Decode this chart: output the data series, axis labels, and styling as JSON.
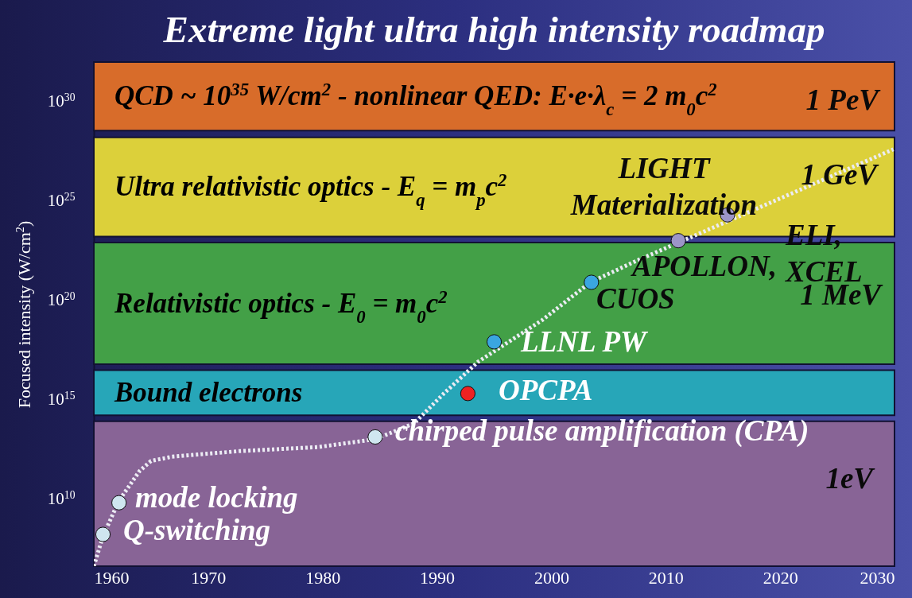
{
  "chart_data": {
    "type": "scatter",
    "title": "Extreme light ultra high intensity roadmap",
    "ylabel": "Focused intensity (W/cm$^{2}$)",
    "log": "y",
    "xlim": [
      1960,
      2030
    ],
    "xticks": [
      1960,
      1970,
      1980,
      1990,
      2000,
      2010,
      2020,
      2030
    ],
    "ylim": [
      4000000.0,
      1e+32
    ],
    "yticks": [
      {
        "value": 10000000000.0,
        "label": "10$^{10}$"
      },
      {
        "value": 1000000000000000.0,
        "label": "10$^{15}$"
      },
      {
        "value": 1e+20,
        "label": "10$^{20}$"
      },
      {
        "value": 1e+25,
        "label": "10$^{25}$"
      },
      {
        "value": 1e+30,
        "label": "10$^{30}$"
      }
    ],
    "bands": [
      {
        "axis": "y",
        "from": 3.5e+28,
        "to": 1e+32,
        "color": "#d86c2a",
        "label": "QCD ~ 10$^{35}$ W/cm$^{2}$  - nonlinear QED: E·e·λ$_{c}$ = 2 m$_{0}$c$^{2}$"
      },
      {
        "axis": "y",
        "from": 1.6e+23,
        "to": 1.6e+28,
        "color": "#dcd03a",
        "label": "Ultra relativistic optics - E$_{q}$ = m$_{p}$c$^{2}$"
      },
      {
        "axis": "y",
        "from": 6e+16,
        "to": 8e+22,
        "color": "#43a047",
        "label": "Relativistic optics - E$_{0}$ = m$_{0}$c$^{2}$"
      },
      {
        "axis": "y",
        "from": 160000000000000.0,
        "to": 3e+16,
        "color": "#27a6b8",
        "label": "Bound electrons"
      },
      {
        "axis": "y",
        "from": 4000000.0,
        "to": 80000000000000.0,
        "color": "#886496"
      }
    ],
    "series": [
      {
        "type": "line",
        "color": "#ececf4",
        "line_style": "dotted",
        "x": [
          1960,
          1960.8,
          1962.2,
          1964,
          1965,
          1966.8,
          1972.7,
          1979.6,
          1984.6,
          1988,
          1990.6,
          1993.6,
          1999.2,
          2003.4,
          2007.5,
          2021.4,
          2029.9
        ],
        "values": [
          4000000.0,
          130000000.0,
          8000000000.0,
          250000000000.0,
          800000000000.0,
          1300000000000.0,
          2500000000000.0,
          4000000000000.0,
          10000000000000.0,
          63000000000000.0,
          2000000000000000.0,
          8e+16,
          1e+19,
          8e+20,
          1e+22,
          3e+25,
          4e+27
        ]
      },
      {
        "marker": "circle",
        "x": [
          1960.8,
          1962.2,
          1984.6,
          1992.7,
          1995,
          2003.5,
          2011.1,
          2015.4
        ],
        "values": [
          160000000.0,
          6300000000.0,
          13000000000000.0,
          2000000000000000.0,
          8e+17,
          8e+20,
          1e+23,
          2e+24
        ],
        "colors": [
          "#cfe6f0",
          "#cfe6f0",
          "#cfe6f0",
          "#ee2222",
          "#3aa6e0",
          "#3aa6e0",
          "#9c95c8",
          "#9c95c8"
        ]
      }
    ],
    "annotations": [
      "Q-switching",
      "mode locking",
      "chirped pulse amplification (CPA)",
      "OPCPA",
      "LLNL PW",
      "CUOS",
      "APOLLON,",
      "ELI,\nXCEL",
      "LIGHT\nMaterialization",
      "1 PeV",
      "1 GeV",
      "1 MeV",
      "1eV"
    ]
  }
}
